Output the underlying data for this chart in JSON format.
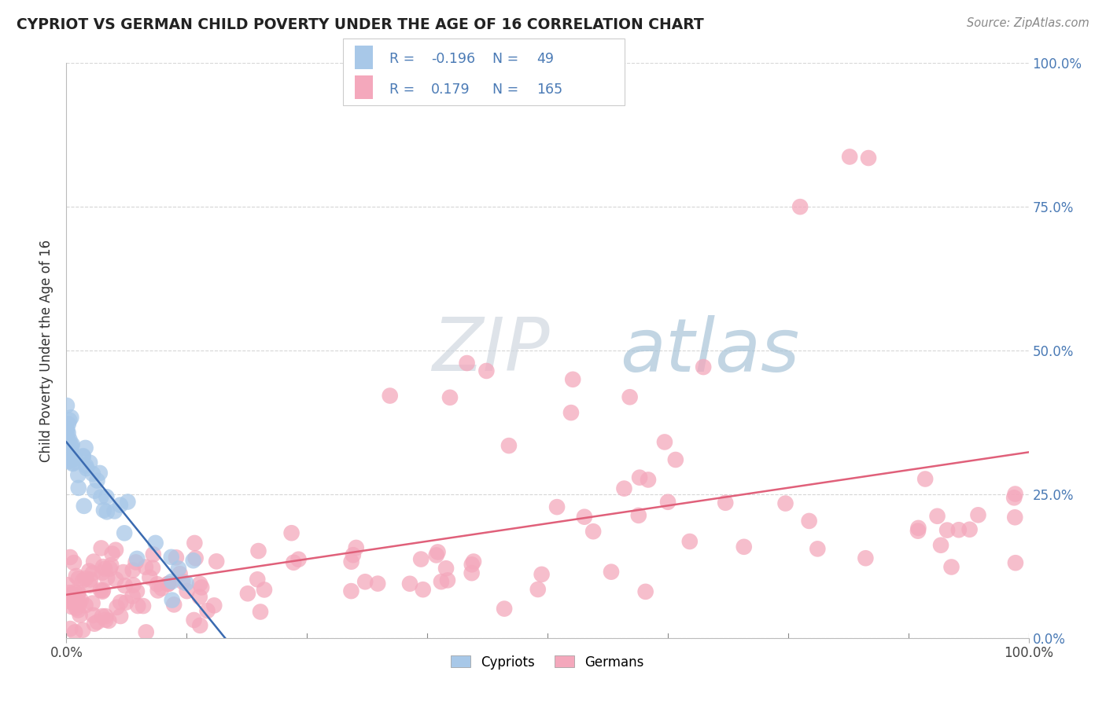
{
  "title": "CYPRIOT VS GERMAN CHILD POVERTY UNDER THE AGE OF 16 CORRELATION CHART",
  "source": "Source: ZipAtlas.com",
  "ylabel": "Child Poverty Under the Age of 16",
  "legend_label1": "Cypriots",
  "legend_label2": "Germans",
  "r1": "-0.196",
  "n1": "49",
  "r2": "0.179",
  "n2": "165",
  "title_color": "#222222",
  "source_color": "#888888",
  "cypriot_color": "#a8c8e8",
  "german_color": "#f4a8bc",
  "trend_cypriot_color": "#3a6ab0",
  "trend_german_color": "#e0607a",
  "axis_label_color": "#4a7ab5",
  "ytick_color": "#4a7ab5",
  "xtick_color": "#444444",
  "grid_color": "#cccccc",
  "background_color": "#ffffff",
  "xmin": 0.0,
  "xmax": 1.0,
  "ymin": 0.0,
  "ymax": 1.0
}
